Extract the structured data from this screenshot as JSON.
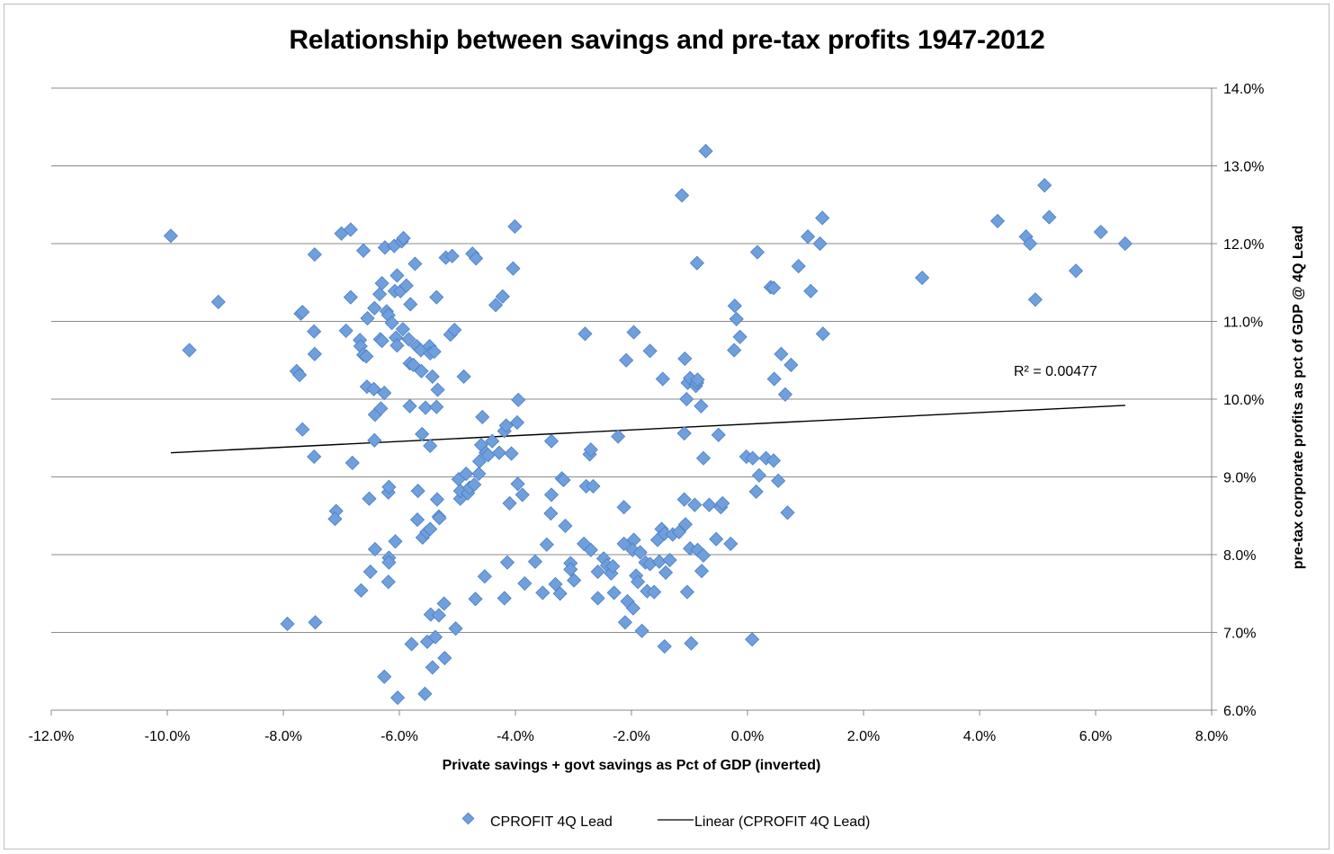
{
  "chart_data": {
    "type": "scatter",
    "title": "Relationship between savings and pre-tax profits 1947-2012",
    "xlabel": "Private savings + govt savings as Pct of GDP (inverted)",
    "ylabel": "pre-tax corporate profits as pct of GDP @ 4Q Lead",
    "xlim": [
      -0.12,
      0.08
    ],
    "ylim": [
      0.06,
      0.14
    ],
    "x_ticks": [
      -0.12,
      -0.1,
      -0.08,
      -0.06,
      -0.04,
      -0.02,
      0.0,
      0.02,
      0.04,
      0.06,
      0.08
    ],
    "x_tick_labels": [
      "-12.0%",
      "-10.0%",
      "-8.0%",
      "-6.0%",
      "-4.0%",
      "-2.0%",
      "0.0%",
      "2.0%",
      "4.0%",
      "6.0%",
      "8.0%"
    ],
    "y_ticks": [
      0.06,
      0.07,
      0.08,
      0.09,
      0.1,
      0.11,
      0.12,
      0.13,
      0.14
    ],
    "y_tick_labels": [
      "6.0%",
      "7.0%",
      "8.0%",
      "9.0%",
      "10.0%",
      "11.0%",
      "12.0%",
      "13.0%",
      "14.0%"
    ],
    "grid": true,
    "legend_position": "bottom",
    "annotation": "R² = 0.00477",
    "series": [
      {
        "name": "CPROFIT 4Q Lead",
        "kind": "scatter",
        "color": "#6f9fdc",
        "points": [
          [
            -0.0994,
            0.121
          ],
          [
            -0.0962,
            0.1063
          ],
          [
            -0.0912,
            0.1125
          ],
          [
            -0.0793,
            0.0711
          ],
          [
            -0.0777,
            0.1036
          ],
          [
            -0.0772,
            0.1031
          ],
          [
            -0.077,
            0.111
          ],
          [
            -0.0767,
            0.1112
          ],
          [
            -0.0767,
            0.0961
          ],
          [
            -0.0746,
            0.1186
          ],
          [
            -0.0747,
            0.1087
          ],
          [
            -0.0746,
            0.1058
          ],
          [
            -0.0747,
            0.0926
          ],
          [
            -0.0745,
            0.0713
          ],
          [
            -0.0709,
            0.0856
          ],
          [
            -0.0711,
            0.0846
          ],
          [
            -0.07,
            0.1213
          ],
          [
            -0.0692,
            0.1088
          ],
          [
            -0.0684,
            0.1218
          ],
          [
            -0.0684,
            0.1131
          ],
          [
            -0.0681,
            0.0918
          ],
          [
            -0.0668,
            0.1076
          ],
          [
            -0.0662,
            0.1191
          ],
          [
            -0.0667,
            0.1068
          ],
          [
            -0.0662,
            0.1057
          ],
          [
            -0.0657,
            0.1055
          ],
          [
            -0.0666,
            0.0754
          ],
          [
            -0.0655,
            0.1104
          ],
          [
            -0.0656,
            0.1016
          ],
          [
            -0.0652,
            0.0872
          ],
          [
            -0.065,
            0.0778
          ],
          [
            -0.0643,
            0.1117
          ],
          [
            -0.0644,
            0.1013
          ],
          [
            -0.0642,
            0.098
          ],
          [
            -0.0643,
            0.0947
          ],
          [
            -0.0642,
            0.0807
          ],
          [
            -0.0634,
            0.1135
          ],
          [
            -0.0633,
            0.1077
          ],
          [
            -0.063,
            0.1149
          ],
          [
            -0.063,
            0.1075
          ],
          [
            -0.0632,
            0.0988
          ],
          [
            -0.0625,
            0.1195
          ],
          [
            -0.0626,
            0.1008
          ],
          [
            -0.0626,
            0.0643
          ],
          [
            -0.0622,
            0.1113
          ],
          [
            -0.0619,
            0.1108
          ],
          [
            -0.0619,
            0.088
          ],
          [
            -0.0618,
            0.0887
          ],
          [
            -0.0618,
            0.0796
          ],
          [
            -0.0618,
            0.079
          ],
          [
            -0.0619,
            0.0765
          ],
          [
            -0.0609,
            0.1197
          ],
          [
            -0.0613,
            0.1098
          ],
          [
            -0.0604,
            0.1159
          ],
          [
            -0.0606,
            0.1079
          ],
          [
            -0.0604,
            0.1069
          ],
          [
            -0.0608,
            0.1139
          ],
          [
            -0.0607,
            0.0817
          ],
          [
            -0.0603,
            0.0616
          ],
          [
            -0.0596,
            0.1203
          ],
          [
            -0.0593,
            0.1207
          ],
          [
            -0.0598,
            0.1139
          ],
          [
            -0.0594,
            0.109
          ],
          [
            -0.0588,
            0.1146
          ],
          [
            -0.0584,
            0.1077
          ],
          [
            -0.0581,
            0.1122
          ],
          [
            -0.0582,
            0.1046
          ],
          [
            -0.0582,
            0.0991
          ],
          [
            -0.0579,
            0.0685
          ],
          [
            -0.0573,
            0.1174
          ],
          [
            -0.0576,
            0.1044
          ],
          [
            -0.057,
            0.1068
          ],
          [
            -0.0568,
            0.0882
          ],
          [
            -0.0569,
            0.0845
          ],
          [
            -0.0563,
            0.1063
          ],
          [
            -0.0562,
            0.1036
          ],
          [
            -0.0561,
            0.0955
          ],
          [
            -0.056,
            0.0822
          ],
          [
            -0.0555,
            0.0989
          ],
          [
            -0.0556,
            0.0621
          ],
          [
            -0.0548,
            0.1068
          ],
          [
            -0.0547,
            0.1059
          ],
          [
            -0.0547,
            0.094
          ],
          [
            -0.0553,
            0.0829
          ],
          [
            -0.0552,
            0.0688
          ],
          [
            -0.054,
            0.1061
          ],
          [
            -0.0543,
            0.1029
          ],
          [
            -0.0547,
            0.0833
          ],
          [
            -0.0546,
            0.0723
          ],
          [
            -0.0543,
            0.0655
          ],
          [
            -0.0536,
            0.1131
          ],
          [
            -0.0534,
            0.1012
          ],
          [
            -0.0536,
            0.099
          ],
          [
            -0.0535,
            0.0871
          ],
          [
            -0.0532,
            0.0849
          ],
          [
            -0.0531,
            0.0847
          ],
          [
            -0.0538,
            0.0694
          ],
          [
            -0.0532,
            0.0722
          ],
          [
            -0.0523,
            0.0737
          ],
          [
            -0.0522,
            0.0667
          ],
          [
            -0.052,
            0.1182
          ],
          [
            -0.0512,
            0.1083
          ],
          [
            -0.0509,
            0.1184
          ],
          [
            -0.0505,
            0.1089
          ],
          [
            -0.0503,
            0.0705
          ],
          [
            -0.0495,
            0.0872
          ],
          [
            -0.0495,
            0.0882
          ],
          [
            -0.0498,
            0.0897
          ],
          [
            -0.0489,
            0.1029
          ],
          [
            -0.0485,
            0.0904
          ],
          [
            -0.0482,
            0.0879
          ],
          [
            -0.0479,
            0.0886
          ],
          [
            -0.0471,
            0.089
          ],
          [
            -0.0474,
            0.1187
          ],
          [
            -0.0468,
            0.1181
          ],
          [
            -0.0469,
            0.0743
          ],
          [
            -0.0463,
            0.0904
          ],
          [
            -0.0462,
            0.092
          ],
          [
            -0.0459,
            0.0941
          ],
          [
            -0.0457,
            0.0977
          ],
          [
            -0.0453,
            0.0772
          ],
          [
            -0.0451,
            0.0931
          ],
          [
            -0.0447,
            0.0928
          ],
          [
            -0.044,
            0.0946
          ],
          [
            -0.0434,
            0.1121
          ],
          [
            -0.0428,
            0.0931
          ],
          [
            -0.0422,
            0.1132
          ],
          [
            -0.0419,
            0.0959
          ],
          [
            -0.0419,
            0.0744
          ],
          [
            -0.0416,
            0.0966
          ],
          [
            -0.0414,
            0.079
          ],
          [
            -0.041,
            0.0866
          ],
          [
            -0.0407,
            0.093
          ],
          [
            -0.0404,
            0.1168
          ],
          [
            -0.0401,
            0.1222
          ],
          [
            -0.0397,
            0.097
          ],
          [
            -0.0395,
            0.0999
          ],
          [
            -0.0396,
            0.0891
          ],
          [
            -0.0388,
            0.0877
          ],
          [
            -0.0384,
            0.0763
          ],
          [
            -0.0366,
            0.0791
          ],
          [
            -0.0353,
            0.0751
          ],
          [
            -0.0346,
            0.0813
          ],
          [
            -0.0339,
            0.0853
          ],
          [
            -0.0338,
            0.0877
          ],
          [
            -0.0338,
            0.0946
          ],
          [
            -0.0331,
            0.0762
          ],
          [
            -0.0323,
            0.075
          ],
          [
            -0.032,
            0.0898
          ],
          [
            -0.0317,
            0.0896
          ],
          [
            -0.0314,
            0.0837
          ],
          [
            -0.0305,
            0.0789
          ],
          [
            -0.0305,
            0.0781
          ],
          [
            -0.0299,
            0.0767
          ],
          [
            -0.028,
            0.1084
          ],
          [
            -0.0282,
            0.0814
          ],
          [
            -0.0278,
            0.0888
          ],
          [
            -0.0272,
            0.0929
          ],
          [
            -0.027,
            0.0935
          ],
          [
            -0.027,
            0.0806
          ],
          [
            -0.0266,
            0.0888
          ],
          [
            -0.0258,
            0.0744
          ],
          [
            -0.0258,
            0.0778
          ],
          [
            -0.0248,
            0.0795
          ],
          [
            -0.0242,
            0.0786
          ],
          [
            -0.0235,
            0.0776
          ],
          [
            -0.0232,
            0.0785
          ],
          [
            -0.023,
            0.0751
          ],
          [
            -0.0223,
            0.0952
          ],
          [
            -0.0213,
            0.0861
          ],
          [
            -0.0209,
            0.105
          ],
          [
            -0.0213,
            0.0814
          ],
          [
            -0.0211,
            0.0713
          ],
          [
            -0.0207,
            0.074
          ],
          [
            -0.0197,
            0.0731
          ],
          [
            -0.0196,
            0.1086
          ],
          [
            -0.0196,
            0.0819
          ],
          [
            -0.0198,
            0.0806
          ],
          [
            -0.0192,
            0.0773
          ],
          [
            -0.0189,
            0.0765
          ],
          [
            -0.0185,
            0.0803
          ],
          [
            -0.0182,
            0.0702
          ],
          [
            -0.0176,
            0.079
          ],
          [
            -0.0173,
            0.0753
          ],
          [
            -0.0168,
            0.0788
          ],
          [
            -0.0168,
            0.1062
          ],
          [
            -0.0161,
            0.0752
          ],
          [
            -0.0155,
            0.0819
          ],
          [
            -0.0152,
            0.0791
          ],
          [
            -0.0148,
            0.0833
          ],
          [
            -0.0146,
            0.1026
          ],
          [
            -0.0143,
            0.0682
          ],
          [
            -0.0143,
            0.0827
          ],
          [
            -0.0141,
            0.0777
          ],
          [
            -0.0134,
            0.0793
          ],
          [
            -0.0129,
            0.0826
          ],
          [
            -0.0118,
            0.0829
          ],
          [
            -0.0113,
            0.1262
          ],
          [
            -0.0109,
            0.0871
          ],
          [
            -0.0109,
            0.0956
          ],
          [
            -0.0108,
            0.1052
          ],
          [
            -0.0107,
            0.0839
          ],
          [
            -0.0105,
            0.1
          ],
          [
            -0.0103,
            0.1021
          ],
          [
            -0.0104,
            0.0752
          ],
          [
            -0.0099,
            0.1027
          ],
          [
            -0.0099,
            0.0808
          ],
          [
            -0.0097,
            0.0686
          ],
          [
            -0.0091,
            0.0864
          ],
          [
            -0.0089,
            0.1017
          ],
          [
            -0.0087,
            0.1021
          ],
          [
            -0.0087,
            0.1175
          ],
          [
            -0.0086,
            0.0806
          ],
          [
            -0.0086,
            0.1025
          ],
          [
            -0.008,
            0.0991
          ],
          [
            -0.0076,
            0.0924
          ],
          [
            -0.0079,
            0.0779
          ],
          [
            -0.0076,
            0.0799
          ],
          [
            -0.0072,
            0.1319
          ],
          [
            -0.0066,
            0.0864
          ],
          [
            -0.0054,
            0.082
          ],
          [
            -0.005,
            0.0954
          ],
          [
            -0.0046,
            0.0861
          ],
          [
            -0.0043,
            0.0866
          ],
          [
            -0.0029,
            0.0814
          ],
          [
            -0.0022,
            0.112
          ],
          [
            -0.0019,
            0.1103
          ],
          [
            -0.0023,
            0.1063
          ],
          [
            -0.0013,
            0.108
          ],
          [
            -0.0002,
            0.0926
          ],
          [
            0.0008,
            0.0691
          ],
          [
            0.0009,
            0.0924
          ],
          [
            0.0015,
            0.0881
          ],
          [
            0.0017,
            0.1189
          ],
          [
            0.002,
            0.0902
          ],
          [
            0.0032,
            0.0924
          ],
          [
            0.004,
            0.1144
          ],
          [
            0.0045,
            0.1143
          ],
          [
            0.0046,
            0.1026
          ],
          [
            0.0045,
            0.0921
          ],
          [
            0.0053,
            0.0895
          ],
          [
            0.0058,
            0.1058
          ],
          [
            0.0065,
            0.1006
          ],
          [
            0.0069,
            0.0854
          ],
          [
            0.0075,
            0.1044
          ],
          [
            0.0088,
            0.1171
          ],
          [
            0.0104,
            0.1209
          ],
          [
            0.0109,
            0.1139
          ],
          [
            0.0125,
            0.12
          ],
          [
            0.0129,
            0.1233
          ],
          [
            0.013,
            0.1084
          ],
          [
            0.0301,
            0.1156
          ],
          [
            0.0431,
            0.1229
          ],
          [
            0.048,
            0.1209
          ],
          [
            0.0487,
            0.12
          ],
          [
            0.0496,
            0.1128
          ],
          [
            0.0512,
            0.1275
          ],
          [
            0.052,
            0.1234
          ],
          [
            0.0566,
            0.1165
          ],
          [
            0.0609,
            0.1215
          ],
          [
            0.0651,
            0.12
          ]
        ]
      },
      {
        "name": "Linear (CPROFIT 4Q Lead)",
        "kind": "trendline",
        "color": "#000000",
        "points": [
          [
            -0.0994,
            0.0931
          ],
          [
            0.0651,
            0.0992
          ]
        ]
      }
    ]
  }
}
